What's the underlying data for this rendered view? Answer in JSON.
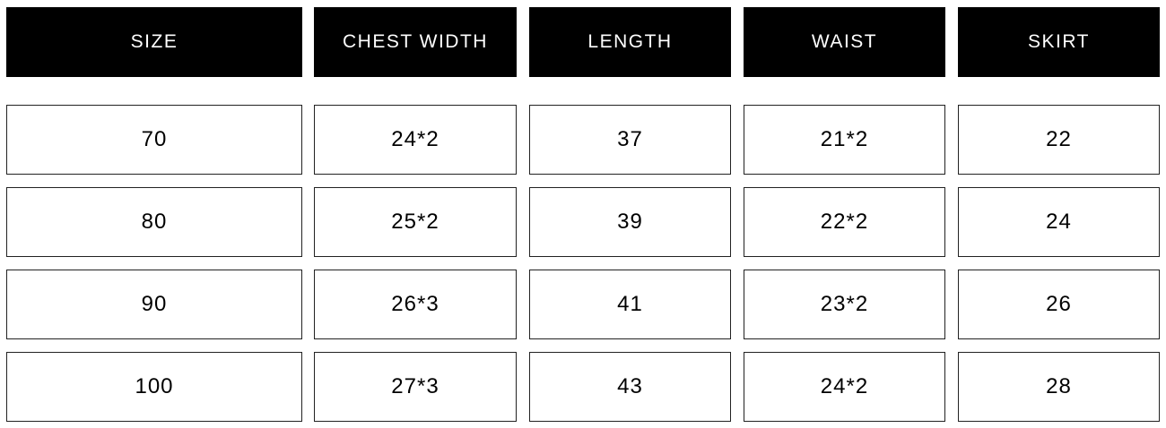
{
  "headers": [
    "SIZE",
    "CHEST WIDTH",
    "LENGTH",
    "WAIST",
    "SKIRT"
  ],
  "rows": [
    [
      "70",
      "24*2",
      "37",
      "21*2",
      "22"
    ],
    [
      "80",
      "25*2",
      "39",
      "22*2",
      "24"
    ],
    [
      "90",
      "26*3",
      "41",
      "23*2",
      "26"
    ],
    [
      "100",
      "27*3",
      "43",
      "24*2",
      "28"
    ]
  ]
}
